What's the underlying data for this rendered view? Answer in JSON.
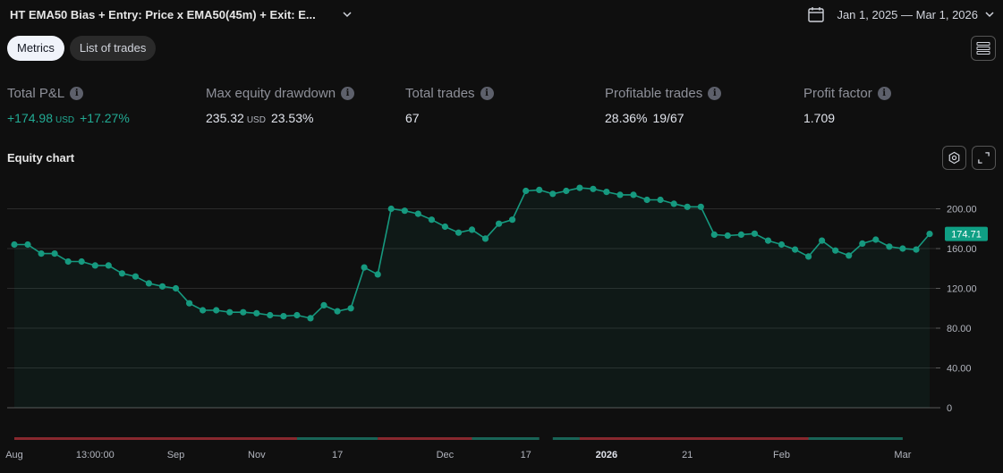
{
  "header": {
    "strategy_title": "HT EMA50 Bias + Entry: Price x EMA50(45m) + Exit: E...",
    "date_range": "Jan 1, 2025 — Mar 1, 2026"
  },
  "tabs": [
    {
      "label": "Metrics",
      "active": true
    },
    {
      "label": "List of trades",
      "active": false
    }
  ],
  "icons": {
    "title_dropdown": "chevron-down-icon",
    "calendar": "calendar-icon",
    "menu": "hamburger-menu-icon",
    "info": "info-icon",
    "chart_settings": "settings-icon",
    "fullscreen": "expand-icon"
  },
  "metrics": {
    "total_pnl": {
      "label": "Total P&L",
      "value": "+174.98",
      "currency": "USD",
      "percent": "+17.27%"
    },
    "max_drawdown": {
      "label": "Max equity drawdown",
      "value": "235.32",
      "currency": "USD",
      "percent": "23.53%"
    },
    "total_trades": {
      "label": "Total trades",
      "value": "67"
    },
    "profitable_trades": {
      "label": "Profitable trades",
      "percent": "28.36%",
      "ratio": "19/67"
    },
    "profit_factor": {
      "label": "Profit factor",
      "value": "1.709"
    }
  },
  "equity_chart": {
    "title": "Equity chart"
  },
  "colors": {
    "accent_green": "#22ab94",
    "loss_red": "#b2313a",
    "line": "#16997f",
    "badge": "#0f9f84"
  },
  "chart_data": {
    "type": "area",
    "last_value_label": "174.71",
    "y_ticks": [
      "200.00",
      "160.00",
      "120.00",
      "80.00",
      "40.00",
      "0"
    ],
    "y_tick_values": [
      200,
      160,
      120,
      80,
      40,
      0
    ],
    "ylim": [
      0,
      225
    ],
    "x_ticks": [
      "Aug",
      "13:00:00",
      "Sep",
      "Nov",
      "17",
      "Dec",
      "17",
      "2026",
      "21",
      "Feb",
      "Mar"
    ],
    "x_tick_indices": [
      0,
      6,
      12,
      18,
      24,
      32,
      38,
      44,
      50,
      57,
      66
    ],
    "grid": true,
    "equity_values": [
      164,
      164,
      155,
      155,
      147,
      147,
      143,
      143,
      135,
      132,
      125,
      122,
      120,
      105,
      98,
      98,
      96,
      96,
      95,
      93,
      92,
      93,
      90,
      103,
      97,
      100,
      141,
      134,
      200,
      198,
      195,
      189,
      182,
      176,
      179,
      170,
      185,
      189,
      218,
      219,
      215,
      218,
      221,
      220,
      217,
      214,
      214,
      209,
      209,
      205,
      202,
      202,
      174,
      173,
      174,
      175,
      168,
      164,
      159,
      152,
      168,
      158,
      153,
      165,
      169,
      162,
      160,
      159,
      174.71
    ],
    "trade_result_segments": [
      {
        "result": "loss",
        "from": 0,
        "to": 21
      },
      {
        "result": "win",
        "from": 21,
        "to": 27
      },
      {
        "result": "loss",
        "from": 27,
        "to": 34
      },
      {
        "result": "win",
        "from": 34,
        "to": 39
      },
      {
        "result": "win",
        "from": 40,
        "to": 42
      },
      {
        "result": "loss",
        "from": 42,
        "to": 59
      },
      {
        "result": "win",
        "from": 59,
        "to": 66
      }
    ]
  }
}
